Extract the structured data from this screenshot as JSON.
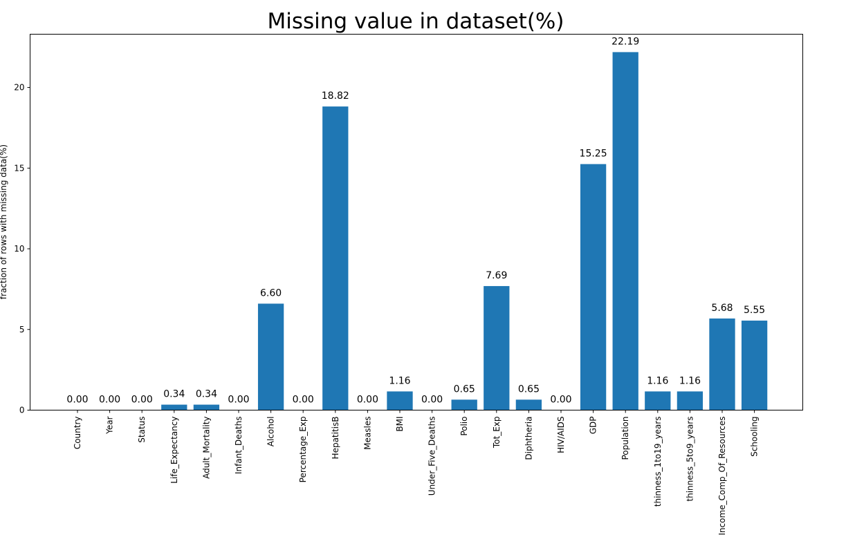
{
  "chart_data": {
    "type": "bar",
    "title": "Missing value in dataset(%)",
    "xlabel": "",
    "ylabel": "fraction of rows with missing data(%)",
    "categories": [
      "Country",
      "Year",
      "Status",
      "Life_Expectancy",
      "Adult_Mortality",
      "Infant_Deaths",
      "Alcohol",
      "Percentage_Exp",
      "HepatitisB",
      "Measles",
      "BMI",
      "Under_Five_Deaths",
      "Polio",
      "Tot_Exp",
      "Diphtheria",
      "HIV/AIDS",
      "GDP",
      "Population",
      "thinness_1to19_years",
      "thinness_5to9_years",
      "Income_Comp_Of_Resources",
      "Schooling"
    ],
    "values": [
      0.0,
      0.0,
      0.0,
      0.34,
      0.34,
      0.0,
      6.6,
      0.0,
      18.82,
      0.0,
      1.16,
      0.0,
      0.65,
      7.69,
      0.65,
      0.0,
      15.25,
      22.19,
      1.16,
      1.16,
      5.68,
      5.55
    ],
    "value_labels": [
      "0.00",
      "0.00",
      "0.00",
      "0.34",
      "0.34",
      "0.00",
      "6.60",
      "0.00",
      "18.82",
      "0.00",
      "1.16",
      "0.00",
      "0.65",
      "7.69",
      "0.65",
      "0.00",
      "15.25",
      "22.19",
      "1.16",
      "1.16",
      "5.68",
      "5.55"
    ],
    "yticks": [
      0,
      5,
      10,
      15,
      20
    ],
    "ylim": [
      0,
      23.3
    ],
    "grid": false,
    "bar_color": "#1f77b4"
  }
}
